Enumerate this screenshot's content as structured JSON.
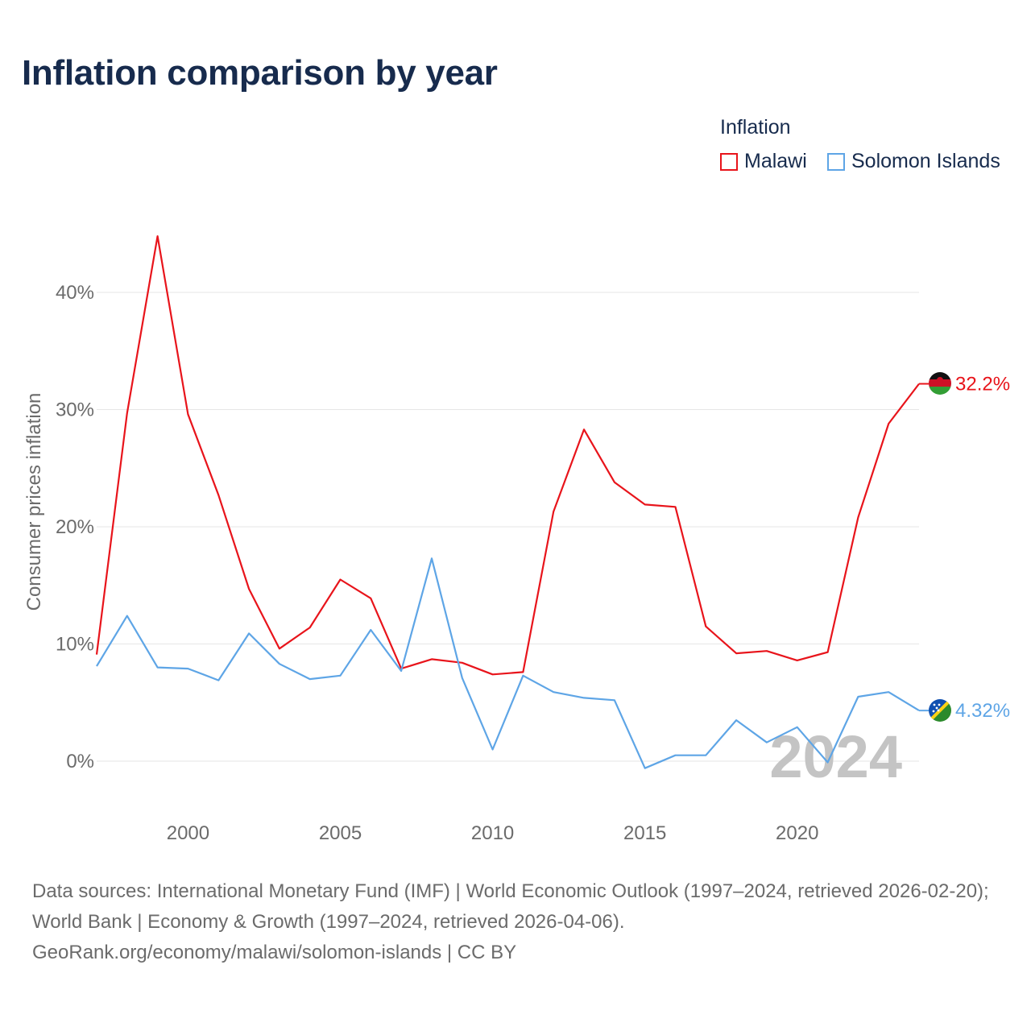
{
  "title": "Inflation comparison by year",
  "legend": {
    "title": "Inflation",
    "items": [
      {
        "label": "Malawi",
        "color": "#e8141b"
      },
      {
        "label": "Solomon Islands",
        "color": "#5ea5e6"
      }
    ]
  },
  "chart_data": {
    "type": "line",
    "title": "Inflation comparison by year",
    "xlabel": "",
    "ylabel": "Consumer prices inflation",
    "x": [
      1997,
      1998,
      1999,
      2000,
      2001,
      2002,
      2003,
      2004,
      2005,
      2006,
      2007,
      2008,
      2009,
      2010,
      2011,
      2012,
      2013,
      2014,
      2015,
      2016,
      2017,
      2018,
      2019,
      2020,
      2021,
      2022,
      2023,
      2024
    ],
    "xlim": [
      1997,
      2024
    ],
    "ylim": [
      -5,
      50
    ],
    "x_ticks": [
      2000,
      2005,
      2010,
      2015,
      2020
    ],
    "x_tick_labels": [
      "2000",
      "2005",
      "2010",
      "2015",
      "2020"
    ],
    "y_ticks": [
      0,
      10,
      20,
      30,
      40
    ],
    "y_tick_labels": [
      "0%",
      "10%",
      "20%",
      "30%",
      "40%"
    ],
    "grid": true,
    "year_watermark": "2024",
    "series": [
      {
        "name": "Malawi",
        "color": "#e8141b",
        "end_label": "32.2%",
        "values": [
          9.1,
          29.7,
          44.8,
          29.6,
          22.7,
          14.7,
          9.6,
          11.4,
          15.5,
          13.9,
          7.9,
          8.7,
          8.4,
          7.4,
          7.6,
          21.3,
          28.3,
          23.8,
          21.9,
          21.7,
          11.5,
          9.2,
          9.4,
          8.6,
          9.3,
          20.8,
          28.8,
          32.2
        ]
      },
      {
        "name": "Solomon Islands",
        "color": "#5ea5e6",
        "end_label": "4.32%",
        "values": [
          8.1,
          12.4,
          8.0,
          7.9,
          6.9,
          10.9,
          8.3,
          7.0,
          7.3,
          11.2,
          7.7,
          17.3,
          7.1,
          1.0,
          7.3,
          5.9,
          5.4,
          5.2,
          -0.6,
          0.5,
          0.5,
          3.5,
          1.6,
          2.9,
          -0.1,
          5.5,
          5.9,
          4.32
        ]
      }
    ]
  },
  "sources": {
    "line1": "Data sources: International Monetary Fund (IMF) | World Economic Outlook (1997–2024, retrieved 2026-02-20); World Bank | Economy & Growth (1997–2024, retrieved 2026-04-06).",
    "line2": "GeoRank.org/economy/malawi/solomon-islands | CC BY"
  }
}
